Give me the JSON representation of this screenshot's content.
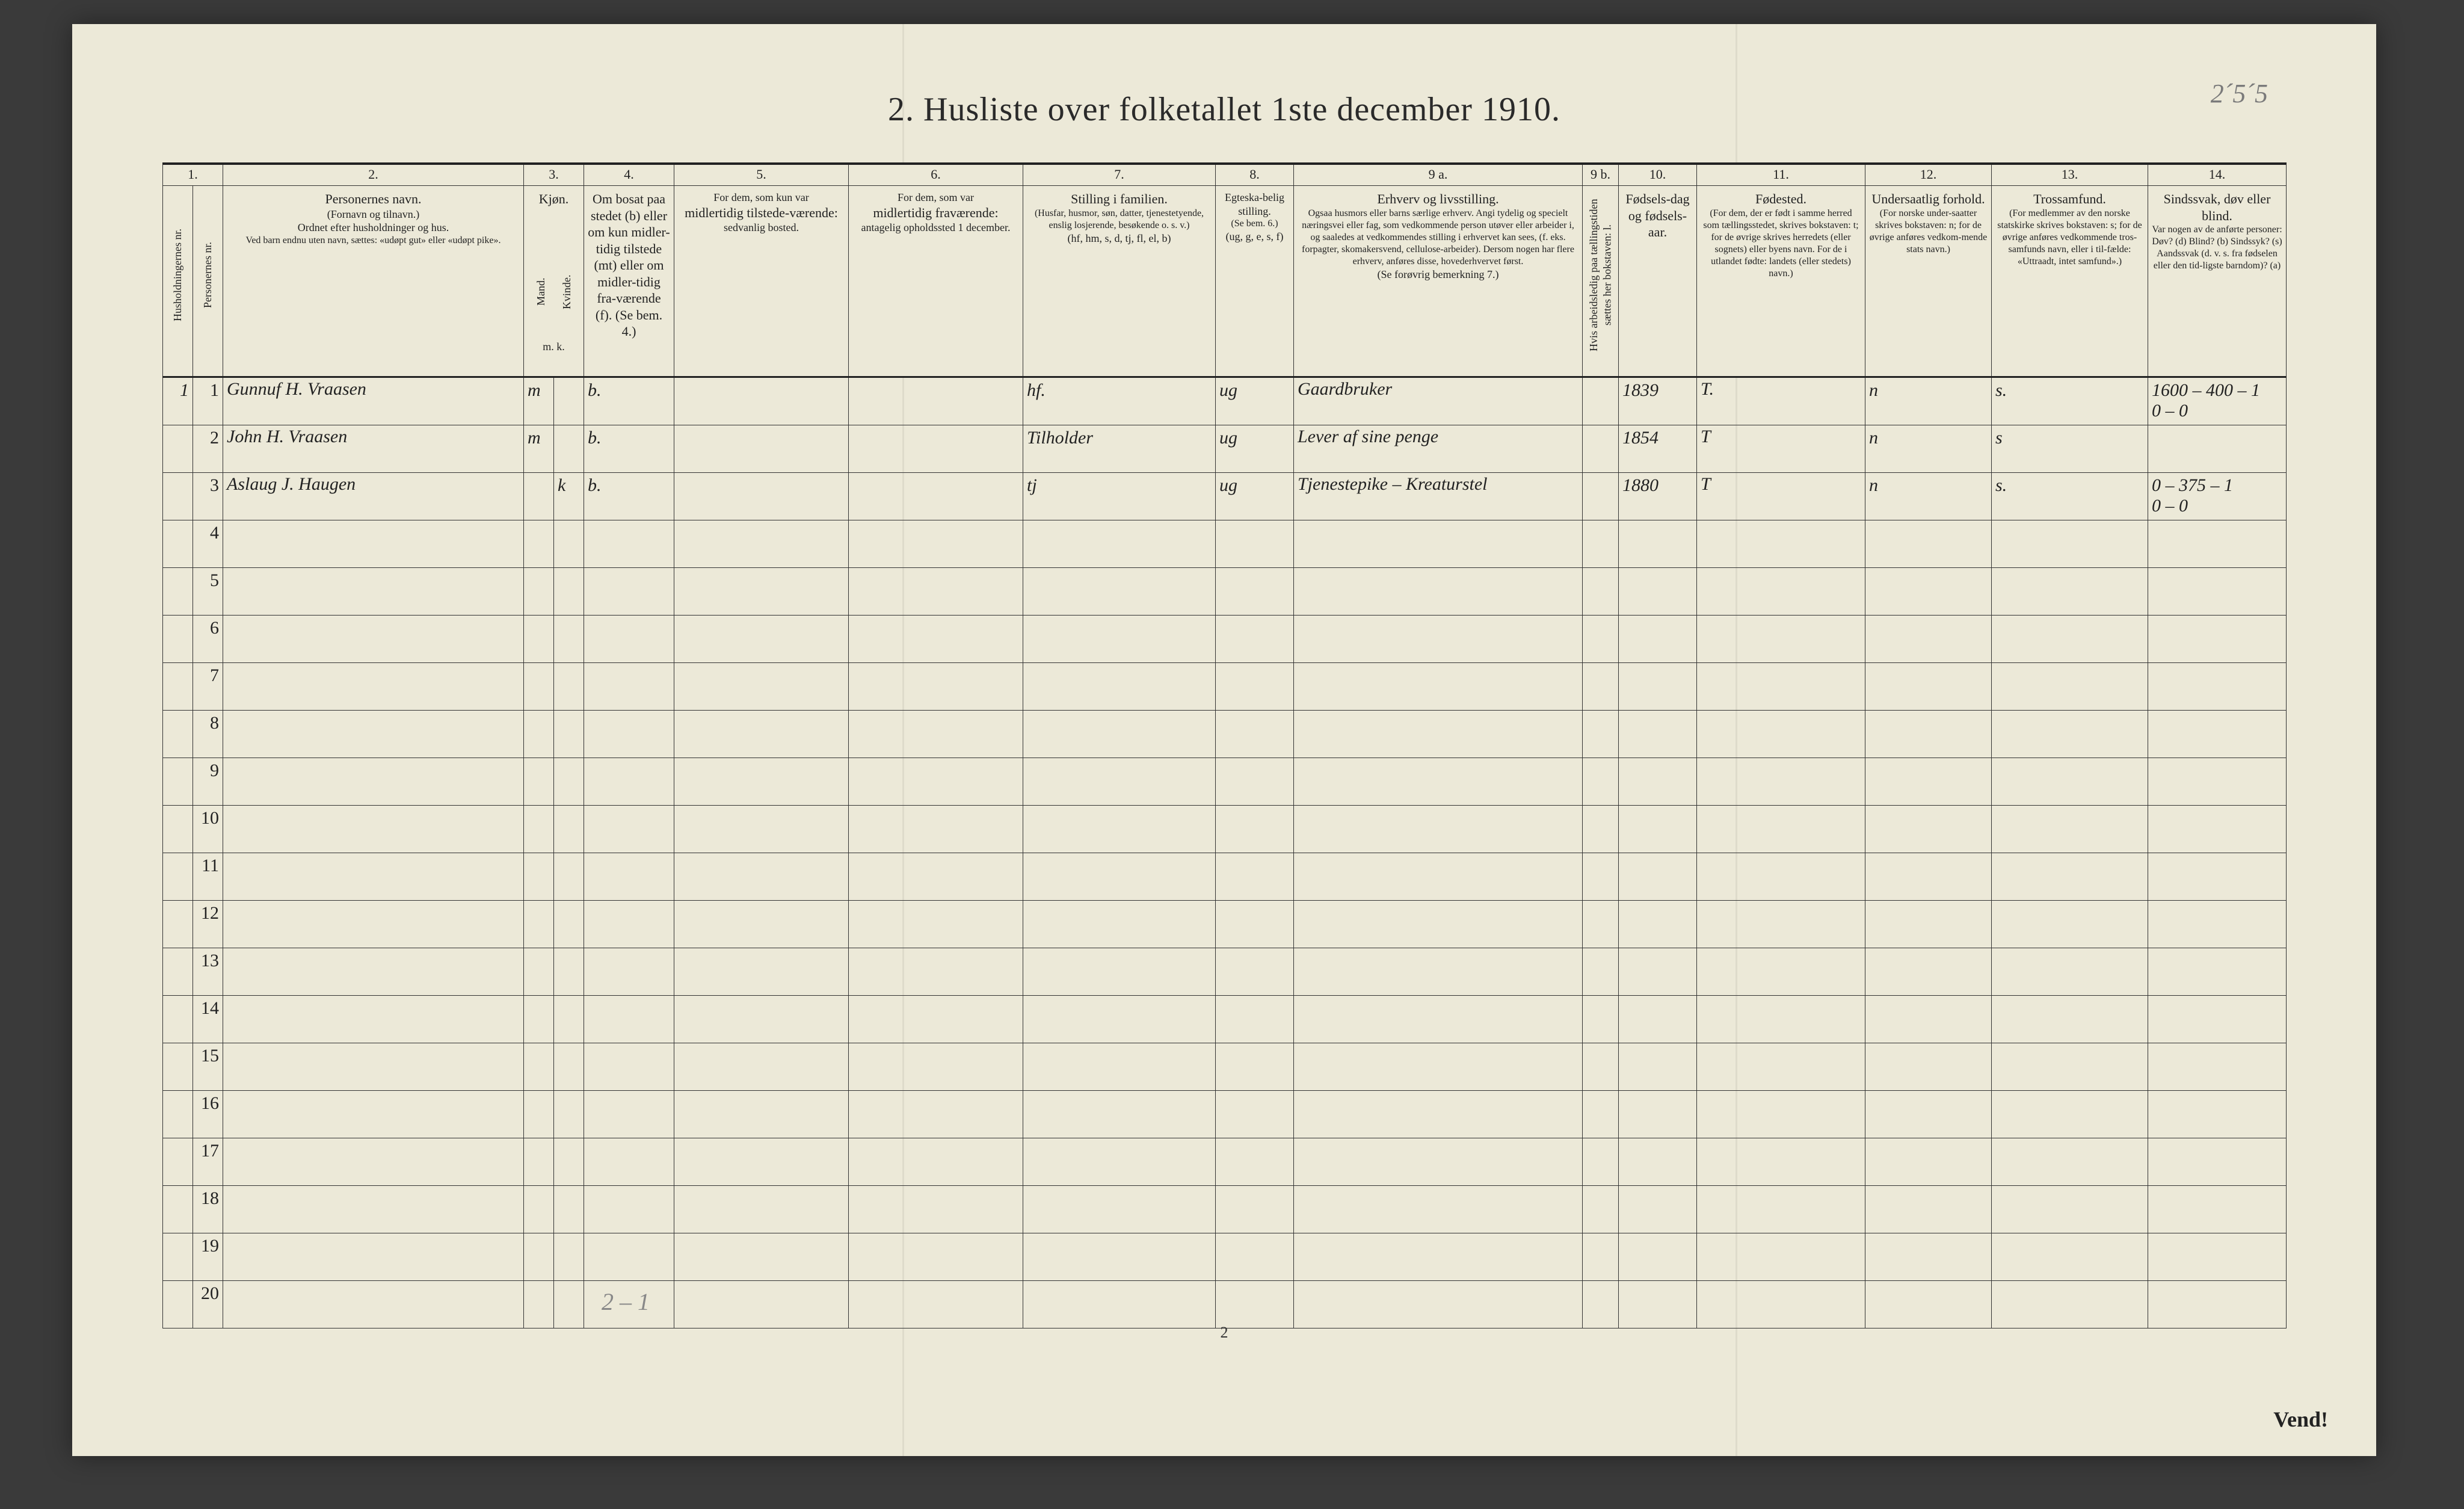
{
  "title": "2.  Husliste over folketallet 1ste december 1910.",
  "pencil_topright": "2´5´5",
  "footer_center": "2",
  "vend": "Vend!",
  "bottom_pencil": "2 – 1",
  "colnums": [
    "1.",
    "2.",
    "3.",
    "4.",
    "5.",
    "6.",
    "7.",
    "8.",
    "9 a.",
    "9 b.",
    "10.",
    "11.",
    "12.",
    "13.",
    "14."
  ],
  "headers": {
    "c1a": "Husholdningernes nr.",
    "c1b": "Personernes nr.",
    "c2_title": "Personernes navn.",
    "c2_line2": "(Fornavn og tilnavn.)",
    "c2_line3": "Ordnet efter husholdninger og hus.",
    "c2_line4": "Ved barn endnu uten navn, sættes: «udøpt gut» eller «udøpt pike».",
    "c3_title": "Kjøn.",
    "c3_m": "Mand.",
    "c3_k": "Kvinde.",
    "c3_foot": "m.  k.",
    "c4": "Om bosat paa stedet (b) eller om kun midler-tidig tilstede (mt) eller om midler-tidig fra-værende (f). (Se bem. 4.)",
    "c5_a": "For dem, som kun var",
    "c5_b": "midlertidig tilstede-værende:",
    "c5_c": "sedvanlig bosted.",
    "c6_a": "For dem, som var",
    "c6_b": "midlertidig fraværende:",
    "c6_c": "antagelig opholdssted 1 december.",
    "c7_a": "Stilling i familien.",
    "c7_b": "(Husfar, husmor, søn, datter, tjenestetyende, enslig losjerende, besøkende o. s. v.)",
    "c7_c": "(hf, hm, s, d, tj, fl, el, b)",
    "c8_a": "Egteska-belig stilling.",
    "c8_b": "(Se bem. 6.)",
    "c8_c": "(ug, g, e, s, f)",
    "c9a_a": "Erhverv og livsstilling.",
    "c9a_b": "Ogsaa husmors eller barns særlige erhverv. Angi tydelig og specielt næringsvei eller fag, som vedkommende person utøver eller arbeider i, og saaledes at vedkommendes stilling i erhvervet kan sees, (f. eks. forpagter, skomakersvend, cellulose-arbeider). Dersom nogen har flere erhverv, anføres disse, hovederhvervet først.",
    "c9a_c": "(Se forøvrig bemerkning 7.)",
    "c9b": "Hvis arbeidsledig paa tællingstiden sættes her bokstaven: l.",
    "c10_a": "Fødsels-dag og fødsels-aar.",
    "c11_a": "Fødested.",
    "c11_b": "(For dem, der er født i samme herred som tællingsstedet, skrives bokstaven: t; for de øvrige skrives herredets (eller sognets) eller byens navn. For de i utlandet fødte: landets (eller stedets) navn.)",
    "c12_a": "Undersaatlig forhold.",
    "c12_b": "(For norske under-saatter skrives bokstaven: n; for de øvrige anføres vedkom-mende stats navn.)",
    "c13_a": "Trossamfund.",
    "c13_b": "(For medlemmer av den norske statskirke skrives bokstaven: s; for de øvrige anføres vedkommende tros-samfunds navn, eller i til-fælde: «Uttraadt, intet samfund».)",
    "c14_a": "Sindssvak, døv eller blind.",
    "c14_b": "Var nogen av de anførte personer:",
    "c14_c": "Døv? (d)  Blind? (b)  Sindssyk? (s)  Aandssvak (d. v. s. fra fødselen eller den tid-ligste barndom)? (a)"
  },
  "rows": [
    {
      "hh": "1",
      "pn": "1",
      "name": "Gunnuf H. Vraasen",
      "sex": "m",
      "bosat": "b.",
      "c5": "",
      "c6": "",
      "stilling": "hf.",
      "egte": "ug",
      "erhverv": "Gaardbruker",
      "c9b": "",
      "fodsel": "1839",
      "fodested": "T.",
      "unders": "n",
      "tros": "s.",
      "note": "1600 – 400 – 1\n0 – 0"
    },
    {
      "hh": "",
      "pn": "2",
      "name": "John H. Vraasen",
      "sex": "m",
      "bosat": "b.",
      "c5": "",
      "c6": "",
      "stilling": "Tilholder",
      "egte": "ug",
      "erhverv": "Lever af sine penge",
      "c9b": "",
      "fodsel": "1854",
      "fodested": "T",
      "unders": "n",
      "tros": "s",
      "note": ""
    },
    {
      "hh": "",
      "pn": "3",
      "name": "Aslaug J. Haugen",
      "sex": "k",
      "bosat": "b.",
      "c5": "",
      "c6": "",
      "stilling": "tj",
      "egte": "ug",
      "erhverv": "Tjenestepike – Kreaturstel",
      "c9b": "",
      "fodsel": "1880",
      "fodested": "T",
      "unders": "n",
      "tros": "s.",
      "note": "0 – 375 – 1\n0 – 0"
    }
  ],
  "blank_row_nums": [
    "4",
    "5",
    "6",
    "7",
    "8",
    "9",
    "10",
    "11",
    "12",
    "13",
    "14",
    "15",
    "16",
    "17",
    "18",
    "19",
    "20"
  ],
  "colwidths": {
    "c1a": 50,
    "c1b": 50,
    "c2": 500,
    "c3m": 50,
    "c3k": 50,
    "c4": 150,
    "c5": 290,
    "c6": 290,
    "c7": 320,
    "c8": 130,
    "c9a": 480,
    "c9b": 60,
    "c10": 130,
    "c11": 280,
    "c12": 210,
    "c13": 260,
    "c14": 230
  },
  "colors": {
    "paper": "#ece9d8",
    "ink": "#222222",
    "pencil": "#7a7a7a",
    "rule": "#333333"
  }
}
